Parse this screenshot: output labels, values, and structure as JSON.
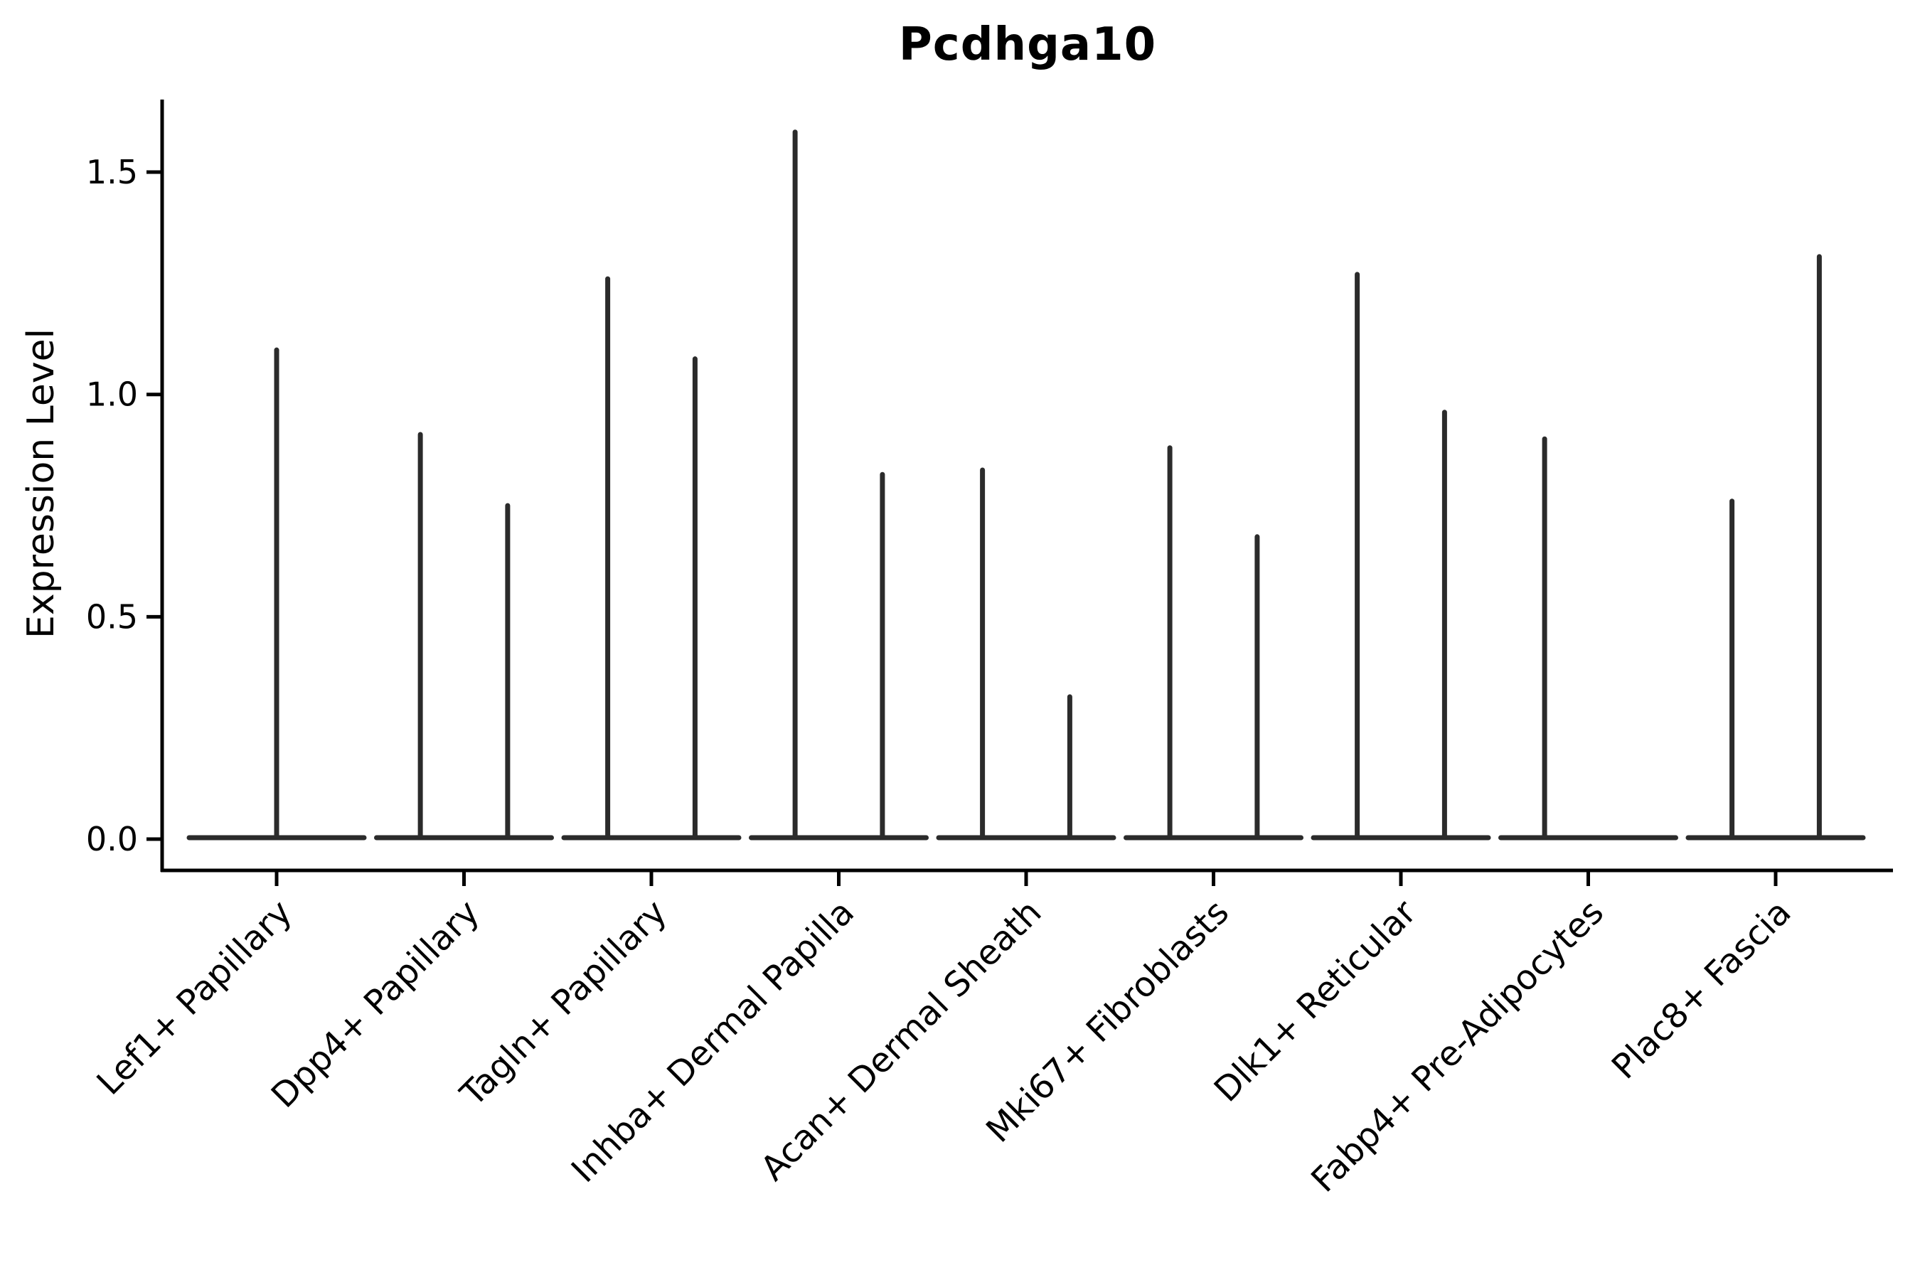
{
  "title": "Pcdhga10",
  "axes": {
    "y_label": "Expression Level",
    "y_tick_labels": [
      "0.0",
      "0.5",
      "1.0",
      "1.5"
    ],
    "x_tick_labels": [
      "Lef1+ Papillary",
      "Dpp4+ Papillary",
      "Tagln+ Papillary",
      "Inhba+ Dermal Papilla",
      "Acan+ Dermal Sheath",
      "Mki67+ Fibroblasts",
      "Dlk1+ Reticular",
      "Fabp4+ Pre-Adipocytes",
      "Plac8+ Fascia"
    ]
  },
  "colors": {
    "violin": "#2b2b2b",
    "axis": "#000000",
    "text": "#000000",
    "background": "#ffffff"
  },
  "chart_data": {
    "type": "violin",
    "title": "Pcdhga10",
    "xlabel": "",
    "ylabel": "Expression Level",
    "ylim": [
      -0.07,
      1.66
    ],
    "y_ticks": [
      0,
      0.5,
      1,
      1.5
    ],
    "x_tick_rotation": 45,
    "grid": false,
    "legend": "none",
    "description": "Single-cell gene expression violin plot; each violin is collapsed to a flat base at expression 0 with thin density spikes whose peaks reach the listed expression levels.",
    "categories": [
      "Lef1+ Papillary",
      "Dpp4+ Papillary",
      "Tagln+ Papillary",
      "Inhba+ Dermal Papilla",
      "Acan+ Dermal Sheath",
      "Mki67+ Fibroblasts",
      "Dlk1+ Reticular",
      "Fabp4+ Pre-Adipocytes",
      "Plac8+ Fascia"
    ],
    "violins": [
      {
        "category": "Lef1+ Papillary",
        "spikes": [
          {
            "offset": 0.0,
            "peak": 1.1
          }
        ]
      },
      {
        "category": "Dpp4+ Papillary",
        "spikes": [
          {
            "offset": -0.233,
            "peak": 0.91
          },
          {
            "offset": 0.233,
            "peak": 0.75
          }
        ]
      },
      {
        "category": "Tagln+ Papillary",
        "spikes": [
          {
            "offset": -0.233,
            "peak": 1.26
          },
          {
            "offset": 0.233,
            "peak": 1.08
          }
        ]
      },
      {
        "category": "Inhba+ Dermal Papilla",
        "spikes": [
          {
            "offset": -0.233,
            "peak": 1.59
          },
          {
            "offset": 0.233,
            "peak": 0.82
          }
        ]
      },
      {
        "category": "Acan+ Dermal Sheath",
        "spikes": [
          {
            "offset": -0.233,
            "peak": 0.83
          },
          {
            "offset": 0.233,
            "peak": 0.32
          }
        ]
      },
      {
        "category": "Mki67+ Fibroblasts",
        "spikes": [
          {
            "offset": -0.233,
            "peak": 0.88
          },
          {
            "offset": 0.233,
            "peak": 0.68
          }
        ]
      },
      {
        "category": "Dlk1+ Reticular",
        "spikes": [
          {
            "offset": -0.233,
            "peak": 1.27
          },
          {
            "offset": 0.233,
            "peak": 0.96
          }
        ]
      },
      {
        "category": "Fabp4+ Pre-Adipocytes",
        "spikes": [
          {
            "offset": -0.233,
            "peak": 0.9
          }
        ]
      },
      {
        "category": "Plac8+ Fascia",
        "spikes": [
          {
            "offset": -0.233,
            "peak": 0.76
          },
          {
            "offset": 0.233,
            "peak": 1.31
          }
        ]
      }
    ]
  }
}
